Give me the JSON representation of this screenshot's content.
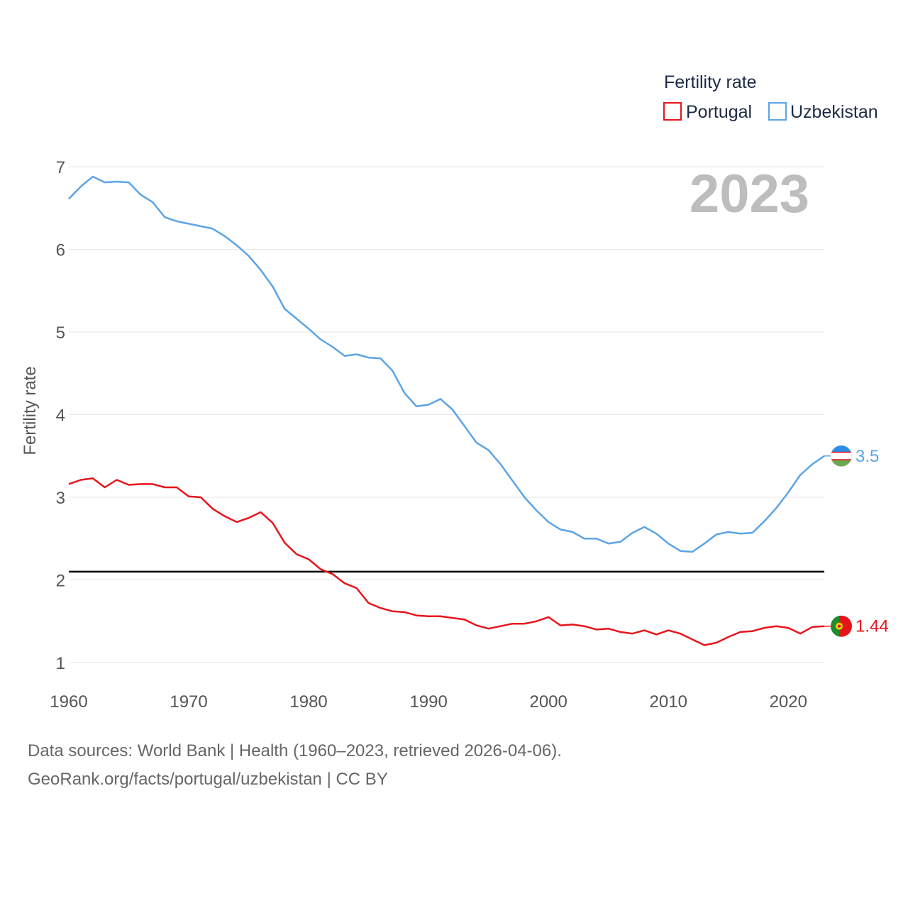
{
  "chart_data": {
    "type": "line",
    "title": "Fertility rate",
    "year_label": "2023",
    "ylabel": "Fertility rate",
    "xlabel": "",
    "xlim": [
      1960,
      2023
    ],
    "ylim": [
      0.85,
      7.15
    ],
    "x_ticks": [
      1960,
      1970,
      1980,
      1990,
      2000,
      2010,
      2020
    ],
    "y_ticks": [
      1,
      2,
      3,
      4,
      5,
      6,
      7
    ],
    "grid": true,
    "reference_line": 2.1,
    "legend_position": "top-right",
    "x": [
      1960,
      1961,
      1962,
      1963,
      1964,
      1965,
      1966,
      1967,
      1968,
      1969,
      1970,
      1971,
      1972,
      1973,
      1974,
      1975,
      1976,
      1977,
      1978,
      1979,
      1980,
      1981,
      1982,
      1983,
      1984,
      1985,
      1986,
      1987,
      1988,
      1989,
      1990,
      1991,
      1992,
      1993,
      1994,
      1995,
      1996,
      1997,
      1998,
      1999,
      2000,
      2001,
      2002,
      2003,
      2004,
      2005,
      2006,
      2007,
      2008,
      2009,
      2010,
      2011,
      2012,
      2013,
      2014,
      2015,
      2016,
      2017,
      2018,
      2019,
      2020,
      2021,
      2022,
      2023
    ],
    "series": [
      {
        "name": "Portugal",
        "color": "#e8141c",
        "end_label": "1.44",
        "values": [
          3.16,
          3.21,
          3.23,
          3.12,
          3.21,
          3.15,
          3.16,
          3.16,
          3.12,
          3.12,
          3.01,
          3.0,
          2.86,
          2.77,
          2.7,
          2.75,
          2.82,
          2.69,
          2.45,
          2.31,
          2.25,
          2.13,
          2.07,
          1.96,
          1.9,
          1.72,
          1.66,
          1.62,
          1.61,
          1.57,
          1.56,
          1.56,
          1.54,
          1.52,
          1.45,
          1.41,
          1.44,
          1.47,
          1.47,
          1.5,
          1.55,
          1.45,
          1.46,
          1.44,
          1.4,
          1.41,
          1.37,
          1.35,
          1.39,
          1.34,
          1.39,
          1.35,
          1.28,
          1.21,
          1.24,
          1.31,
          1.37,
          1.38,
          1.42,
          1.44,
          1.42,
          1.35,
          1.43,
          1.44
        ]
      },
      {
        "name": "Uzbekistan",
        "color": "#5ba4e5",
        "end_label": "3.5",
        "values": [
          6.61,
          6.76,
          6.88,
          6.81,
          6.82,
          6.81,
          6.66,
          6.57,
          6.39,
          6.34,
          6.31,
          6.28,
          6.25,
          6.16,
          6.05,
          5.92,
          5.75,
          5.55,
          5.28,
          5.16,
          5.04,
          4.91,
          4.82,
          4.71,
          4.73,
          4.69,
          4.68,
          4.53,
          4.26,
          4.1,
          4.12,
          4.19,
          4.06,
          3.86,
          3.66,
          3.57,
          3.4,
          3.2,
          3.0,
          2.84,
          2.7,
          2.61,
          2.58,
          2.5,
          2.5,
          2.44,
          2.46,
          2.57,
          2.64,
          2.56,
          2.44,
          2.35,
          2.34,
          2.44,
          2.55,
          2.58,
          2.56,
          2.57,
          2.71,
          2.87,
          3.06,
          3.27,
          3.4,
          3.5
        ]
      }
    ]
  },
  "footer": {
    "line1": "Data sources: World Bank | Health (1960–2023, retrieved 2026-04-06).",
    "line2": "GeoRank.org/facts/portugal/uzbekistan | CC BY"
  },
  "colors": {
    "grid": "#e6e6e6",
    "reference": "#000000",
    "portugal_flag_green": "#1f8a2e",
    "portugal_flag_red": "#e8141c",
    "uzbekistan_flag_blue": "#2a8be8",
    "uzbekistan_flag_green": "#6aa84f"
  },
  "icons": {
    "portugal_marker": "portugal-flag-icon",
    "uzbekistan_marker": "uzbekistan-flag-icon"
  }
}
